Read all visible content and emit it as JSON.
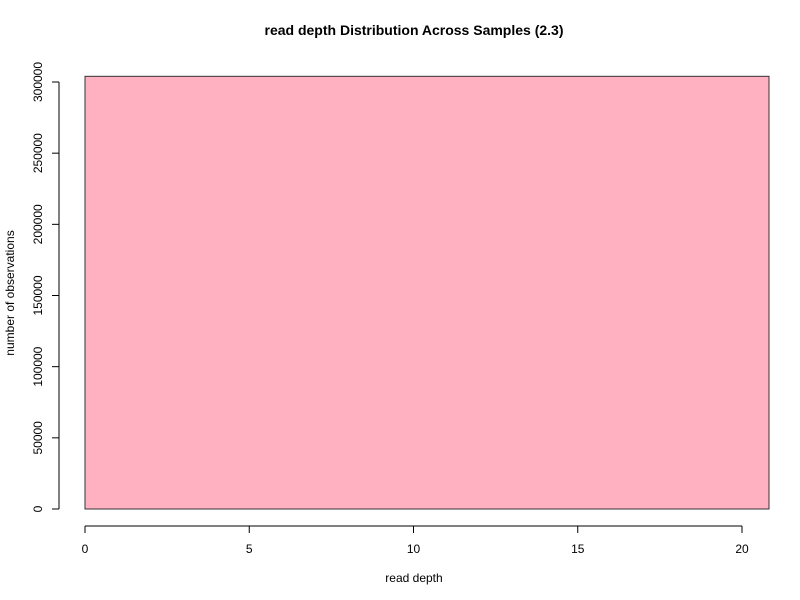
{
  "chart_data": {
    "type": "bar",
    "title": "read depth Distribution Across Samples (2.3)",
    "xlabel": "read depth",
    "ylabel": "number of observations",
    "xlim": [
      0,
      21
    ],
    "ylim": [
      0,
      305000
    ],
    "x_ticks": [
      "0",
      "5",
      "10",
      "15",
      "20"
    ],
    "y_ticks": [
      "0",
      "50000",
      "100000",
      "150000",
      "200000",
      "250000",
      "300000"
    ],
    "bins": [
      {
        "x_start": 0,
        "x_end": 21,
        "value": 304000
      }
    ],
    "bar_color": "#ffb0c1",
    "bar_border_color": "#333333",
    "grid": false
  }
}
